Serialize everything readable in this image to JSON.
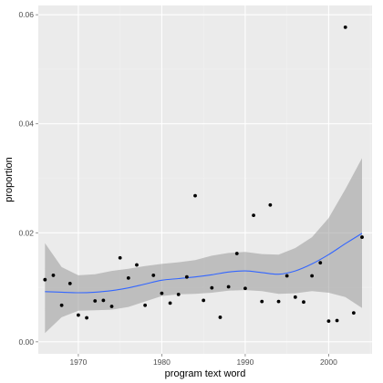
{
  "chart_data": {
    "type": "scatter",
    "title": "",
    "xlabel": "program text word",
    "ylabel": "proportion",
    "xlim": [
      1965.2,
      2005.2
    ],
    "ylim": [
      -0.0022,
      0.0617
    ],
    "x_ticks": [
      1970,
      1980,
      1990,
      2000
    ],
    "x_tick_labels": [
      "1970",
      "1980",
      "1990",
      "2000"
    ],
    "y_ticks": [
      0.0,
      0.02,
      0.04,
      0.06
    ],
    "y_tick_labels": [
      "0.00",
      "0.02",
      "0.04",
      "0.06"
    ],
    "grid": true,
    "points": [
      {
        "x": 1966,
        "y": 0.0114
      },
      {
        "x": 1967,
        "y": 0.0122
      },
      {
        "x": 1968,
        "y": 0.0067
      },
      {
        "x": 1969,
        "y": 0.0107
      },
      {
        "x": 1970,
        "y": 0.0049
      },
      {
        "x": 1971,
        "y": 0.0044
      },
      {
        "x": 1972,
        "y": 0.0075
      },
      {
        "x": 1973,
        "y": 0.0076
      },
      {
        "x": 1974,
        "y": 0.0065
      },
      {
        "x": 1975,
        "y": 0.0154
      },
      {
        "x": 1976,
        "y": 0.0117
      },
      {
        "x": 1977,
        "y": 0.0141
      },
      {
        "x": 1978,
        "y": 0.0067
      },
      {
        "x": 1979,
        "y": 0.0122
      },
      {
        "x": 1980,
        "y": 0.0089
      },
      {
        "x": 1981,
        "y": 0.0071
      },
      {
        "x": 1982,
        "y": 0.0087
      },
      {
        "x": 1983,
        "y": 0.0119
      },
      {
        "x": 1984,
        "y": 0.0268
      },
      {
        "x": 1985,
        "y": 0.0076
      },
      {
        "x": 1986,
        "y": 0.0099
      },
      {
        "x": 1987,
        "y": 0.0045
      },
      {
        "x": 1988,
        "y": 0.0101
      },
      {
        "x": 1989,
        "y": 0.0162
      },
      {
        "x": 1990,
        "y": 0.0098
      },
      {
        "x": 1991,
        "y": 0.0232
      },
      {
        "x": 1992,
        "y": 0.0074
      },
      {
        "x": 1993,
        "y": 0.0251
      },
      {
        "x": 1994,
        "y": 0.0074
      },
      {
        "x": 1995,
        "y": 0.0121
      },
      {
        "x": 1996,
        "y": 0.0082
      },
      {
        "x": 1997,
        "y": 0.0073
      },
      {
        "x": 1998,
        "y": 0.0121
      },
      {
        "x": 1999,
        "y": 0.0145
      },
      {
        "x": 2000,
        "y": 0.0038
      },
      {
        "x": 2001,
        "y": 0.0039
      },
      {
        "x": 2002,
        "y": 0.0577
      },
      {
        "x": 2003,
        "y": 0.0053
      },
      {
        "x": 2004,
        "y": 0.0192
      }
    ],
    "smooth": {
      "x": [
        1966,
        1968,
        1970,
        1972,
        1974,
        1976,
        1978,
        1980,
        1982,
        1984,
        1986,
        1988,
        1990,
        1992,
        1994,
        1996,
        1998,
        2000,
        2002,
        2004
      ],
      "y": [
        0.0092,
        0.0091,
        0.009,
        0.0091,
        0.0094,
        0.0099,
        0.0106,
        0.0113,
        0.0116,
        0.0119,
        0.0123,
        0.0128,
        0.013,
        0.0127,
        0.0124,
        0.013,
        0.0143,
        0.016,
        0.018,
        0.0199
      ],
      "lower": [
        0.0016,
        0.0045,
        0.0057,
        0.0058,
        0.0059,
        0.0064,
        0.0074,
        0.0084,
        0.0087,
        0.0088,
        0.009,
        0.0094,
        0.0095,
        0.0093,
        0.0088,
        0.0089,
        0.0093,
        0.009,
        0.0082,
        0.0062
      ],
      "upper": [
        0.0181,
        0.0137,
        0.0122,
        0.0124,
        0.013,
        0.0134,
        0.0139,
        0.0143,
        0.0146,
        0.015,
        0.0158,
        0.0163,
        0.0165,
        0.0161,
        0.016,
        0.0172,
        0.0192,
        0.0227,
        0.028,
        0.0337
      ]
    },
    "colors": {
      "panel_bg": "#ebebeb",
      "grid_major": "#ffffff",
      "grid_minor": "#f2f2f2",
      "points": "#000000",
      "smooth_line": "#3366ff",
      "ribbon": "#999999",
      "tick_text": "#4d4d4d",
      "axis_title": "#000000"
    }
  }
}
